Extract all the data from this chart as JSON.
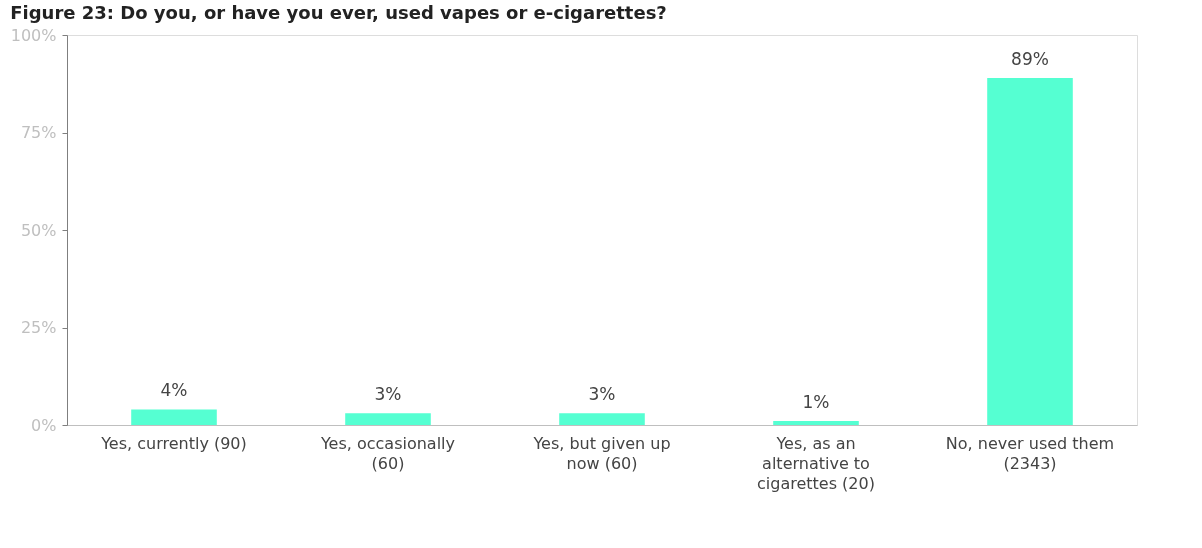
{
  "chart_data": {
    "type": "bar",
    "title": "Figure 23: Do you, or have you ever, used vapes or e-cigarettes?",
    "categories": [
      "Yes, currently (90)",
      "Yes, occasionally (60)",
      "Yes, but given up now (60)",
      "Yes, as an alternative to cigarettes (20)",
      "No, never used them (2343)"
    ],
    "values": [
      4,
      3,
      3,
      1,
      89
    ],
    "value_labels": [
      "4%",
      "3%",
      "3%",
      "1%",
      "89%"
    ],
    "color": "#55ffd2",
    "ylim": [
      0,
      100
    ],
    "yticks": [
      {
        "value": 0,
        "label": "0%"
      },
      {
        "value": 25,
        "label": "25%"
      },
      {
        "value": 50,
        "label": "50%"
      },
      {
        "value": 75,
        "label": "75%"
      },
      {
        "value": 100,
        "label": "100%"
      }
    ],
    "grid": false
  }
}
